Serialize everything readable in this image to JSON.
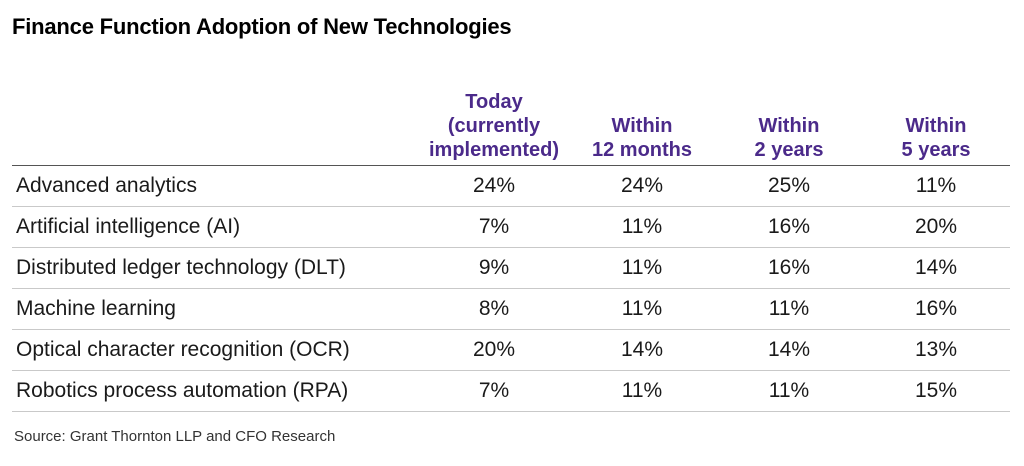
{
  "title": "Finance Function Adoption of New Technologies",
  "source": "Source: Grant Thornton LLP and CFO Research",
  "colors": {
    "header_text": "#4b2a8a",
    "body_text": "#1a1a1a",
    "rule_strong": "#555555",
    "rule_light": "#c9c9c9"
  },
  "chart_data": {
    "type": "table",
    "title": "Finance Function Adoption of New Technologies",
    "columns": [
      {
        "lines": [
          "Today",
          "(currently",
          "implemented)"
        ]
      },
      {
        "lines": [
          "Within",
          "12 months"
        ]
      },
      {
        "lines": [
          "Within",
          "2 years"
        ]
      },
      {
        "lines": [
          "Within",
          "5 years"
        ]
      }
    ],
    "rows": [
      {
        "label": "Advanced analytics",
        "values": [
          "24%",
          "24%",
          "25%",
          "11%"
        ]
      },
      {
        "label": "Artificial intelligence (AI)",
        "values": [
          "7%",
          "11%",
          "16%",
          "20%"
        ]
      },
      {
        "label": "Distributed ledger technology (DLT)",
        "values": [
          "9%",
          "11%",
          "16%",
          "14%"
        ]
      },
      {
        "label": "Machine learning",
        "values": [
          "8%",
          "11%",
          "11%",
          "16%"
        ]
      },
      {
        "label": "Optical character recognition (OCR)",
        "values": [
          "20%",
          "14%",
          "14%",
          "13%"
        ]
      },
      {
        "label": "Robotics process automation (RPA)",
        "values": [
          "7%",
          "11%",
          "11%",
          "15%"
        ]
      }
    ]
  }
}
